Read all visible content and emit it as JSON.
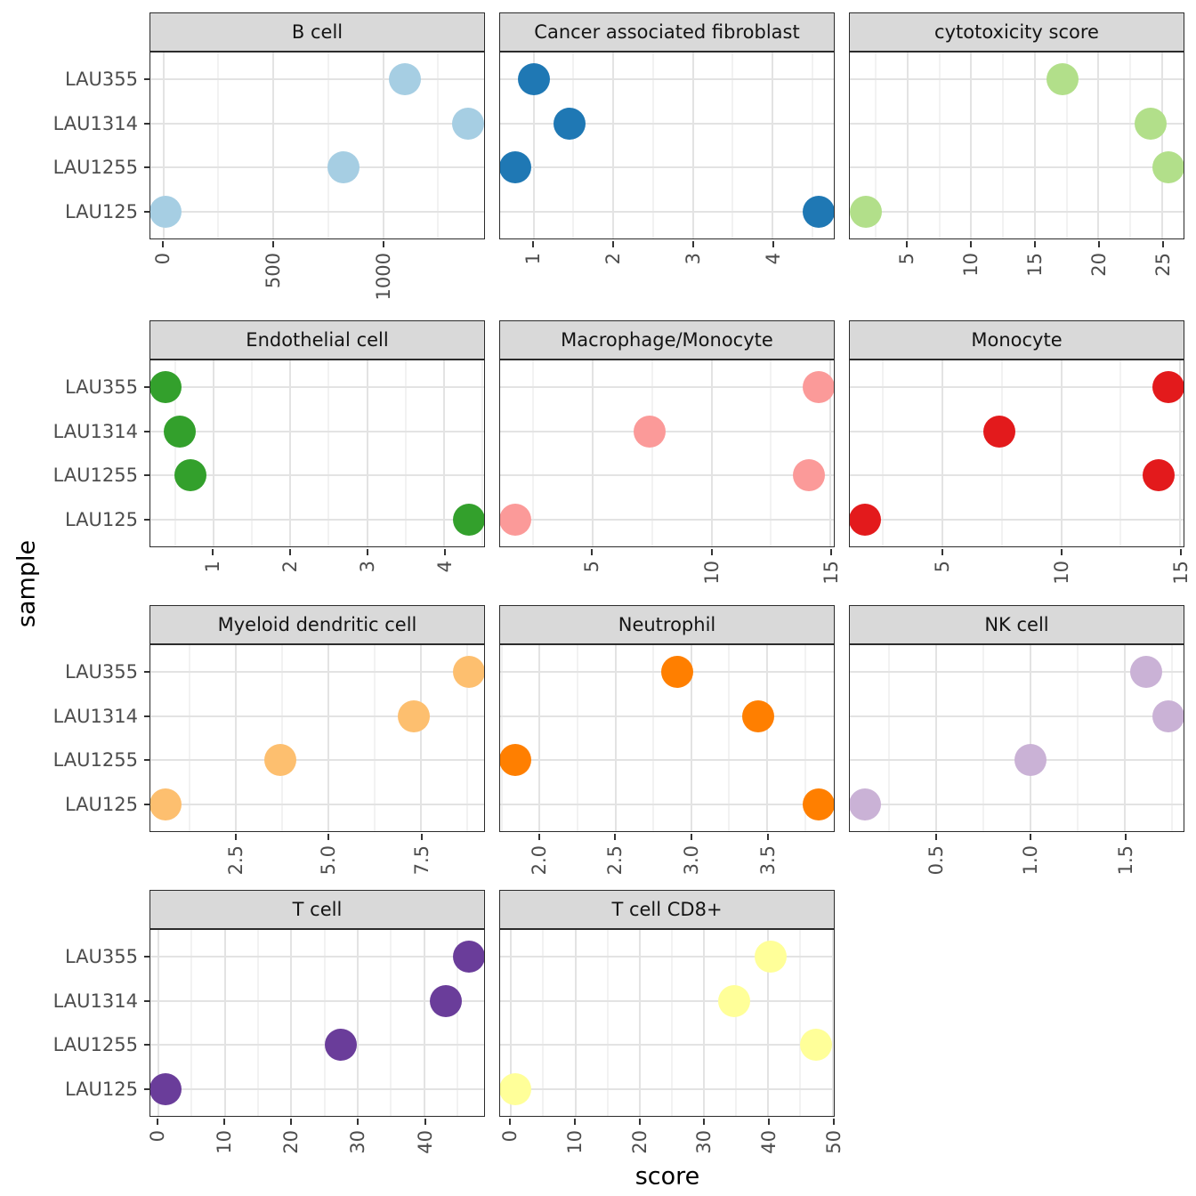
{
  "figure": {
    "y_axis_title": "sample",
    "x_axis_title": "score"
  },
  "chart_data": {
    "type": "scatter",
    "description": "Faceted dot plot of immune deconvolution scores per sample, one facet per cell type / score; free x scales, rotated x tick labels",
    "xlabel": "score",
    "ylabel": "sample",
    "y_categories_top_to_bottom": [
      "LAU355",
      "LAU1314",
      "LAU1255",
      "LAU125"
    ],
    "grid": "major and minor vertical gridlines, major horizontal gridlines per category",
    "legend": "none",
    "panels": [
      {
        "title": "B cell",
        "color": "#a6cee3",
        "x_domain": [
          -59,
          1459
        ],
        "x_ticks": [
          0,
          500,
          1000
        ],
        "x_tick_labels": [
          "0",
          "500",
          "1000"
        ],
        "x_minor": [
          250,
          750,
          1250
        ],
        "points": {
          "LAU355": 1100,
          "LAU1314": 1385,
          "LAU1255": 820,
          "LAU125": 10
        }
      },
      {
        "title": "Cancer associated fibroblast",
        "color": "#1f78b4",
        "x_domain": [
          0.58,
          4.77
        ],
        "x_ticks": [
          1,
          2,
          3,
          4
        ],
        "x_tick_labels": [
          "1",
          "2",
          "3",
          "4"
        ],
        "x_minor": [
          1.5,
          2.5,
          3.5,
          4.5
        ],
        "points": {
          "LAU355": 1.0,
          "LAU1314": 1.45,
          "LAU1255": 0.77,
          "LAU125": 4.58
        }
      },
      {
        "title": "cytotoxicity score",
        "color": "#b2df8a",
        "x_domain": [
          0.47,
          26.69
        ],
        "x_ticks": [
          5,
          10,
          15,
          20,
          25
        ],
        "x_tick_labels": [
          "5",
          "10",
          "15",
          "20",
          "25"
        ],
        "x_minor": [
          2.5,
          7.5,
          12.5,
          17.5,
          22.5
        ],
        "points": {
          "LAU355": 17.2,
          "LAU1314": 24.1,
          "LAU1255": 25.5,
          "LAU125": 1.7
        }
      },
      {
        "title": "Endothelial cell",
        "color": "#33a02c",
        "x_domain": [
          0.18,
          4.52
        ],
        "x_ticks": [
          1,
          2,
          3,
          4
        ],
        "x_tick_labels": [
          "1",
          "2",
          "3",
          "4"
        ],
        "x_minor": [
          0.5,
          1.5,
          2.5,
          3.5,
          4.5
        ],
        "points": {
          "LAU355": 0.38,
          "LAU1314": 0.56,
          "LAU1255": 0.7,
          "LAU125": 4.32
        }
      },
      {
        "title": "Macrophage/Monocyte",
        "color": "#fb9a99",
        "x_domain": [
          1.12,
          15.14
        ],
        "x_ticks": [
          5,
          10,
          15
        ],
        "x_tick_labels": [
          "5",
          "10",
          "15"
        ],
        "x_minor": [
          2.5,
          7.5,
          12.5
        ],
        "points": {
          "LAU355": 14.5,
          "LAU1314": 7.4,
          "LAU1255": 14.1,
          "LAU125": 1.76
        }
      },
      {
        "title": "Monocyte",
        "color": "#e31a1c",
        "x_domain": [
          1.11,
          15.14
        ],
        "x_ticks": [
          5,
          10,
          15
        ],
        "x_tick_labels": [
          "5",
          "10",
          "15"
        ],
        "x_minor": [
          2.5,
          7.5,
          12.5
        ],
        "points": {
          "LAU355": 14.5,
          "LAU1314": 7.4,
          "LAU1255": 14.1,
          "LAU125": 1.75
        }
      },
      {
        "title": "Myeloid dendritic cell",
        "color": "#fdbf6f",
        "x_domain": [
          0.19,
          9.21
        ],
        "x_ticks": [
          2.5,
          5,
          7.5
        ],
        "x_tick_labels": [
          "2.5",
          "5.0",
          "7.5"
        ],
        "x_minor": [
          1.25,
          3.75,
          6.25,
          8.75
        ],
        "points": {
          "LAU355": 8.8,
          "LAU1314": 7.3,
          "LAU1255": 3.7,
          "LAU125": 0.6
        }
      },
      {
        "title": "Neutrophil",
        "color": "#ff7f00",
        "x_domain": [
          1.74,
          3.94
        ],
        "x_ticks": [
          2,
          2.5,
          3,
          3.5
        ],
        "x_tick_labels": [
          "2.0",
          "2.5",
          "3.0",
          "3.5"
        ],
        "x_minor": [
          1.75,
          2.25,
          2.75,
          3.25,
          3.75
        ],
        "points": {
          "LAU355": 2.91,
          "LAU1314": 3.44,
          "LAU1255": 1.84,
          "LAU125": 3.84
        }
      },
      {
        "title": "NK cell",
        "color": "#cab2d6",
        "x_domain": [
          0.04,
          1.81
        ],
        "x_ticks": [
          0.5,
          1,
          1.5
        ],
        "x_tick_labels": [
          "0.5",
          "1.0",
          "1.5"
        ],
        "x_minor": [
          0.25,
          0.75,
          1.25,
          1.75
        ],
        "points": {
          "LAU355": 1.61,
          "LAU1314": 1.73,
          "LAU1255": 1.0,
          "LAU125": 0.12
        }
      },
      {
        "title": "T cell",
        "color": "#6a3d9a",
        "x_domain": [
          -1.18,
          48.98
        ],
        "x_ticks": [
          0,
          10,
          20,
          30,
          40
        ],
        "x_tick_labels": [
          "0",
          "10",
          "20",
          "30",
          "40"
        ],
        "x_minor": [
          5,
          15,
          25,
          35,
          45
        ],
        "points": {
          "LAU355": 46.7,
          "LAU1314": 43.2,
          "LAU1255": 27.5,
          "LAU125": 1.1
        }
      },
      {
        "title": "T cell CD8+",
        "color": "#ffff99",
        "x_domain": [
          -1.7,
          50.2
        ],
        "x_ticks": [
          0,
          10,
          20,
          30,
          40,
          50
        ],
        "x_tick_labels": [
          "0",
          "10",
          "20",
          "30",
          "40",
          "50"
        ],
        "x_minor": [
          5,
          15,
          25,
          35,
          45
        ],
        "points": {
          "LAU355": 40.4,
          "LAU1314": 34.7,
          "LAU1255": 47.5,
          "LAU125": 0.7
        }
      }
    ]
  }
}
